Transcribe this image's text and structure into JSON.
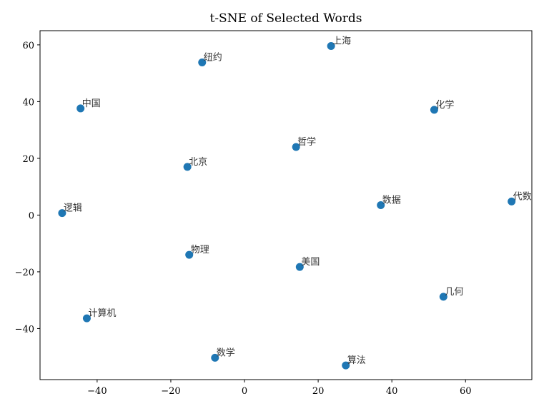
{
  "chart_data": {
    "type": "scatter",
    "title": "t-SNE of Selected Words",
    "xlabel": "",
    "ylabel": "",
    "xlim": [
      -55.5,
      78
    ],
    "ylim": [
      -58,
      65
    ],
    "grid": false,
    "marker_color": "#1f77b4",
    "xticks": [
      -40,
      -20,
      0,
      20,
      40,
      60
    ],
    "yticks": [
      -40,
      -20,
      0,
      20,
      40,
      60
    ],
    "xtick_labels": [
      "−40",
      "−20",
      "0",
      "20",
      "40",
      "60"
    ],
    "ytick_labels": [
      "−40",
      "−20",
      "0",
      "20",
      "40",
      "60"
    ],
    "points": [
      {
        "label": "上海",
        "x": 23.5,
        "y": 59.6
      },
      {
        "label": "纽约",
        "x": -11.5,
        "y": 53.8
      },
      {
        "label": "中国",
        "x": -44.5,
        "y": 37.6
      },
      {
        "label": "化学",
        "x": 51.5,
        "y": 37.1
      },
      {
        "label": "哲学",
        "x": 14.0,
        "y": 24.0
      },
      {
        "label": "北京",
        "x": -15.5,
        "y": 17.0
      },
      {
        "label": "数据",
        "x": 37.0,
        "y": 3.5
      },
      {
        "label": "代数",
        "x": 72.5,
        "y": 4.8
      },
      {
        "label": "逻辑",
        "x": -49.5,
        "y": 0.7
      },
      {
        "label": "物理",
        "x": -15.0,
        "y": -14.0
      },
      {
        "label": "美国",
        "x": 15.0,
        "y": -18.3
      },
      {
        "label": "几何",
        "x": 54.0,
        "y": -28.8
      },
      {
        "label": "计算机",
        "x": -42.8,
        "y": -36.4
      },
      {
        "label": "数学",
        "x": -8.0,
        "y": -50.3
      },
      {
        "label": "算法",
        "x": 27.5,
        "y": -53.0
      }
    ]
  }
}
